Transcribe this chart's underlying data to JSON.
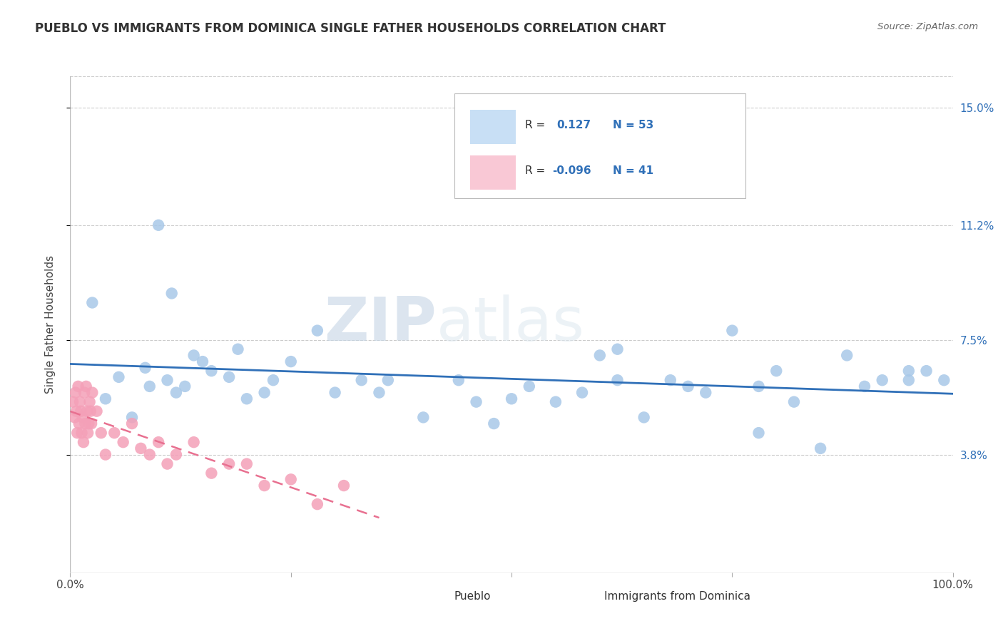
{
  "title": "PUEBLO VS IMMIGRANTS FROM DOMINICA SINGLE FATHER HOUSEHOLDS CORRELATION CHART",
  "source": "Source: ZipAtlas.com",
  "ylabel": "Single Father Households",
  "xlim": [
    0,
    1.0
  ],
  "ylim": [
    0,
    0.16
  ],
  "ytick_positions": [
    0.038,
    0.075,
    0.112,
    0.15
  ],
  "ytick_labels": [
    "3.8%",
    "7.5%",
    "11.2%",
    "15.0%"
  ],
  "r_pueblo": 0.127,
  "n_pueblo": 53,
  "r_dominica": -0.096,
  "n_dominica": 41,
  "pueblo_color": "#a8c8e8",
  "dominica_color": "#f4a0b8",
  "pueblo_line_color": "#3070b8",
  "dominica_line_color": "#e87090",
  "legend_box_color_pueblo": "#c8dff5",
  "legend_box_color_dominica": "#f9c8d5",
  "watermark_zip": "ZIP",
  "watermark_atlas": "atlas",
  "background_color": "#ffffff",
  "grid_color": "#cccccc",
  "pueblo_x": [
    0.025,
    0.055,
    0.085,
    0.1,
    0.11,
    0.115,
    0.13,
    0.14,
    0.16,
    0.18,
    0.19,
    0.2,
    0.22,
    0.25,
    0.28,
    0.3,
    0.33,
    0.36,
    0.4,
    0.44,
    0.46,
    0.48,
    0.5,
    0.52,
    0.55,
    0.58,
    0.6,
    0.62,
    0.65,
    0.68,
    0.7,
    0.72,
    0.75,
    0.78,
    0.8,
    0.82,
    0.85,
    0.88,
    0.9,
    0.92,
    0.95,
    0.97,
    0.99,
    0.04,
    0.07,
    0.09,
    0.12,
    0.15,
    0.23,
    0.35,
    0.62,
    0.78,
    0.95
  ],
  "pueblo_y": [
    0.087,
    0.063,
    0.066,
    0.112,
    0.062,
    0.09,
    0.06,
    0.07,
    0.065,
    0.063,
    0.072,
    0.056,
    0.058,
    0.068,
    0.078,
    0.058,
    0.062,
    0.062,
    0.05,
    0.062,
    0.055,
    0.048,
    0.056,
    0.06,
    0.055,
    0.058,
    0.07,
    0.062,
    0.05,
    0.062,
    0.06,
    0.058,
    0.078,
    0.045,
    0.065,
    0.055,
    0.04,
    0.07,
    0.06,
    0.062,
    0.062,
    0.065,
    0.062,
    0.056,
    0.05,
    0.06,
    0.058,
    0.068,
    0.062,
    0.058,
    0.072,
    0.06,
    0.065
  ],
  "dominica_x": [
    0.003,
    0.005,
    0.006,
    0.007,
    0.008,
    0.009,
    0.01,
    0.011,
    0.012,
    0.013,
    0.014,
    0.015,
    0.016,
    0.017,
    0.018,
    0.019,
    0.02,
    0.021,
    0.022,
    0.023,
    0.024,
    0.025,
    0.03,
    0.035,
    0.04,
    0.05,
    0.06,
    0.07,
    0.08,
    0.09,
    0.1,
    0.11,
    0.12,
    0.14,
    0.16,
    0.18,
    0.2,
    0.22,
    0.25,
    0.28,
    0.31
  ],
  "dominica_y": [
    0.055,
    0.05,
    0.058,
    0.052,
    0.045,
    0.06,
    0.048,
    0.055,
    0.052,
    0.045,
    0.05,
    0.042,
    0.058,
    0.048,
    0.06,
    0.052,
    0.045,
    0.048,
    0.055,
    0.052,
    0.048,
    0.058,
    0.052,
    0.045,
    0.038,
    0.045,
    0.042,
    0.048,
    0.04,
    0.038,
    0.042,
    0.035,
    0.038,
    0.042,
    0.032,
    0.035,
    0.035,
    0.028,
    0.03,
    0.022,
    0.028
  ]
}
